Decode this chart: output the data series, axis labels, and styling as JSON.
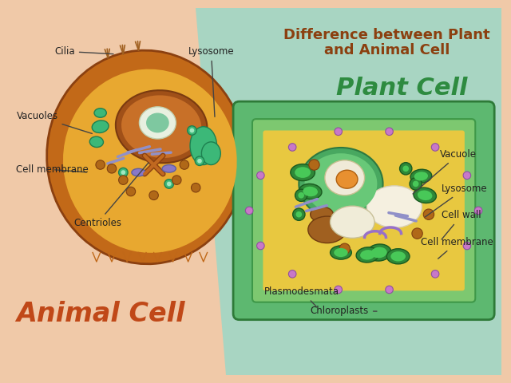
{
  "bg_left_color": "#F0C9A8",
  "bg_right_color": "#A8D5C2",
  "title_line1": "Difference between Plant",
  "title_line2": "and Animal Cell",
  "title_color": "#8B4010",
  "animal_label": "Animal Cell",
  "animal_label_color": "#C04818",
  "plant_label": "Plant Cell",
  "plant_label_color": "#2E8B40",
  "annotation_color": "#222222",
  "arrow_color": "#444444"
}
